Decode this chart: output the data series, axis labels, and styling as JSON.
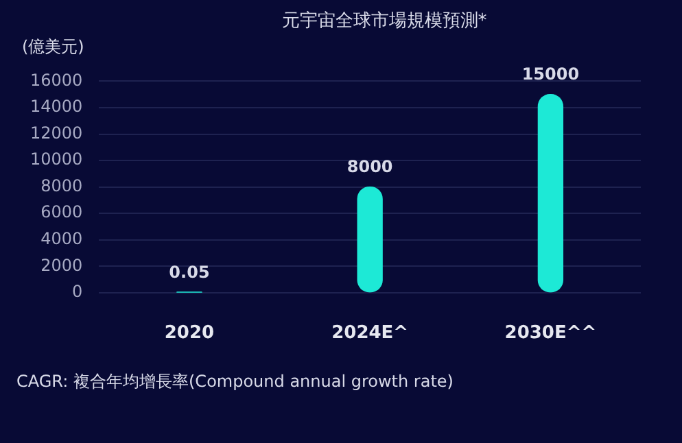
{
  "chart_data": {
    "type": "bar",
    "title": "元宇宙全球市場規模預測*",
    "ylabel": "(億美元)",
    "categories": [
      "2020",
      "2024E^",
      "2030E^^"
    ],
    "values": [
      0.05,
      8000,
      15000
    ],
    "color": "#1de9d6",
    "ylim": [
      0,
      16000
    ],
    "yticks": [
      0,
      2000,
      4000,
      6000,
      8000,
      10000,
      12000,
      14000,
      16000
    ],
    "grid": "y",
    "data_labels": true,
    "annotations": [
      "CAGR: 複合年均增長率(Compound annual growth rate)"
    ]
  }
}
